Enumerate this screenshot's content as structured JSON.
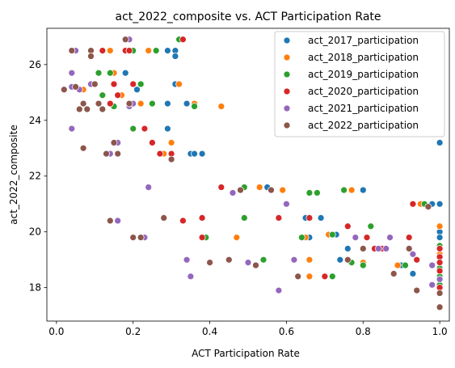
{
  "chart_data": {
    "type": "scatter",
    "title": "act_2022_composite vs. ACT Participation Rate",
    "xlabel": "ACT Participation Rate",
    "ylabel": "act_2022_composite",
    "xlim": [
      -0.025,
      1.025
    ],
    "ylim": [
      16.8,
      27.3
    ],
    "xticks": [
      "0.0",
      "0.2",
      "0.4",
      "0.6",
      "0.8",
      "1.0"
    ],
    "yticks": [
      "18",
      "20",
      "22",
      "24",
      "26"
    ],
    "grid": false,
    "legend_position": "top-right",
    "series": [
      {
        "name": "act_2017_participation",
        "color": "#1f77b4",
        "points": [
          [
            0.29,
            26.5
          ],
          [
            0.31,
            26.5
          ],
          [
            0.31,
            26.3
          ],
          [
            0.31,
            25.3
          ],
          [
            0.18,
            25.7
          ],
          [
            0.21,
            25.1
          ],
          [
            0.29,
            24.6
          ],
          [
            0.34,
            24.6
          ],
          [
            0.29,
            23.7
          ],
          [
            0.35,
            22.8
          ],
          [
            0.36,
            22.8
          ],
          [
            0.38,
            22.8
          ],
          [
            0.55,
            21.6
          ],
          [
            0.65,
            20.5
          ],
          [
            0.66,
            19.8
          ],
          [
            0.69,
            20.5
          ],
          [
            0.73,
            19.9
          ],
          [
            0.74,
            19.0
          ],
          [
            0.76,
            19.4
          ],
          [
            0.8,
            21.5
          ],
          [
            0.84,
            19.4
          ],
          [
            0.9,
            18.8
          ],
          [
            0.93,
            18.5
          ],
          [
            0.98,
            21.0
          ],
          [
            1.0,
            23.2
          ],
          [
            1.0,
            21.0
          ],
          [
            1.0,
            20.0
          ],
          [
            1.0,
            19.8
          ],
          [
            1.0,
            19.4
          ],
          [
            1.0,
            18.9
          ],
          [
            1.0,
            18.6
          ],
          [
            1.0,
            18.3
          ]
        ]
      },
      {
        "name": "act_2018_participation",
        "color": "#ff7f0e",
        "points": [
          [
            0.06,
            25.1
          ],
          [
            0.07,
            25.1
          ],
          [
            0.09,
            26.5
          ],
          [
            0.14,
            26.5
          ],
          [
            0.15,
            25.7
          ],
          [
            0.17,
            24.9
          ],
          [
            0.19,
            26.5
          ],
          [
            0.22,
            24.6
          ],
          [
            0.24,
            26.5
          ],
          [
            0.26,
            26.5
          ],
          [
            0.28,
            22.8
          ],
          [
            0.3,
            23.2
          ],
          [
            0.32,
            25.3
          ],
          [
            0.36,
            24.6
          ],
          [
            0.43,
            24.5
          ],
          [
            0.47,
            19.8
          ],
          [
            0.53,
            21.6
          ],
          [
            0.59,
            21.5
          ],
          [
            0.65,
            19.8
          ],
          [
            0.66,
            19.0
          ],
          [
            0.66,
            18.4
          ],
          [
            0.71,
            19.9
          ],
          [
            0.77,
            21.5
          ],
          [
            0.8,
            18.9
          ],
          [
            0.86,
            19.4
          ],
          [
            0.89,
            18.8
          ],
          [
            0.95,
            21.0
          ],
          [
            1.0,
            20.2
          ],
          [
            1.0,
            19.5
          ],
          [
            1.0,
            19.2
          ],
          [
            1.0,
            18.9
          ],
          [
            1.0,
            18.6
          ]
        ]
      },
      {
        "name": "act_2019_participation",
        "color": "#2ca02c",
        "points": [
          [
            0.11,
            25.7
          ],
          [
            0.12,
            24.9
          ],
          [
            0.14,
            25.7
          ],
          [
            0.15,
            24.5
          ],
          [
            0.2,
            23.7
          ],
          [
            0.2,
            26.5
          ],
          [
            0.22,
            25.3
          ],
          [
            0.25,
            24.6
          ],
          [
            0.26,
            26.5
          ],
          [
            0.32,
            26.9
          ],
          [
            0.36,
            24.5
          ],
          [
            0.39,
            19.8
          ],
          [
            0.49,
            21.6
          ],
          [
            0.49,
            20.5
          ],
          [
            0.54,
            19.0
          ],
          [
            0.64,
            19.8
          ],
          [
            0.66,
            21.4
          ],
          [
            0.68,
            21.4
          ],
          [
            0.72,
            19.9
          ],
          [
            0.72,
            18.4
          ],
          [
            0.75,
            21.5
          ],
          [
            0.77,
            18.9
          ],
          [
            0.8,
            18.8
          ],
          [
            0.82,
            20.2
          ],
          [
            0.86,
            19.4
          ],
          [
            0.91,
            18.8
          ],
          [
            0.96,
            21.0
          ],
          [
            1.0,
            19.5
          ],
          [
            1.0,
            19.1
          ],
          [
            1.0,
            18.7
          ],
          [
            1.0,
            18.4
          ],
          [
            1.0,
            18.1
          ]
        ]
      },
      {
        "name": "act_2020_participation",
        "color": "#d62728",
        "points": [
          [
            0.12,
            26.5
          ],
          [
            0.14,
            24.6
          ],
          [
            0.15,
            25.3
          ],
          [
            0.16,
            24.9
          ],
          [
            0.18,
            26.5
          ],
          [
            0.19,
            26.5
          ],
          [
            0.2,
            25.3
          ],
          [
            0.23,
            23.7
          ],
          [
            0.25,
            23.2
          ],
          [
            0.27,
            22.8
          ],
          [
            0.3,
            22.8
          ],
          [
            0.33,
            26.9
          ],
          [
            0.33,
            20.4
          ],
          [
            0.38,
            20.5
          ],
          [
            0.38,
            19.8
          ],
          [
            0.43,
            21.6
          ],
          [
            0.58,
            20.5
          ],
          [
            0.66,
            20.5
          ],
          [
            0.7,
            18.4
          ],
          [
            0.76,
            20.2
          ],
          [
            0.81,
            19.8
          ],
          [
            0.83,
            19.4
          ],
          [
            0.85,
            19.4
          ],
          [
            0.92,
            19.8
          ],
          [
            0.93,
            21.0
          ],
          [
            0.94,
            19.0
          ],
          [
            1.0,
            19.4
          ],
          [
            1.0,
            19.1
          ],
          [
            1.0,
            18.9
          ],
          [
            1.0,
            18.6
          ],
          [
            1.0,
            18.3
          ],
          [
            1.0,
            18.0
          ]
        ]
      },
      {
        "name": "act_2021_participation",
        "color": "#9467bd",
        "points": [
          [
            0.05,
            26.5
          ],
          [
            0.04,
            25.7
          ],
          [
            0.04,
            25.2
          ],
          [
            0.04,
            23.7
          ],
          [
            0.06,
            25.1
          ],
          [
            0.07,
            24.6
          ],
          [
            0.08,
            24.4
          ],
          [
            0.09,
            25.3
          ],
          [
            0.14,
            22.8
          ],
          [
            0.16,
            23.2
          ],
          [
            0.16,
            20.4
          ],
          [
            0.18,
            26.9
          ],
          [
            0.19,
            26.9
          ],
          [
            0.19,
            24.5
          ],
          [
            0.2,
            24.6
          ],
          [
            0.23,
            19.8
          ],
          [
            0.24,
            21.6
          ],
          [
            0.34,
            19.0
          ],
          [
            0.35,
            18.4
          ],
          [
            0.46,
            21.4
          ],
          [
            0.5,
            18.9
          ],
          [
            0.58,
            17.9
          ],
          [
            0.6,
            21.0
          ],
          [
            0.62,
            19.0
          ],
          [
            0.78,
            19.8
          ],
          [
            0.84,
            19.4
          ],
          [
            0.86,
            19.4
          ],
          [
            0.87,
            19.8
          ],
          [
            0.93,
            19.2
          ],
          [
            0.98,
            18.8
          ],
          [
            0.98,
            18.1
          ],
          [
            1.0,
            18.3
          ]
        ]
      },
      {
        "name": "act_2022_participation",
        "color": "#8c564b",
        "points": [
          [
            0.02,
            25.1
          ],
          [
            0.04,
            26.5
          ],
          [
            0.05,
            25.2
          ],
          [
            0.06,
            24.4
          ],
          [
            0.07,
            24.6
          ],
          [
            0.07,
            23.0
          ],
          [
            0.08,
            24.4
          ],
          [
            0.09,
            26.5
          ],
          [
            0.09,
            26.3
          ],
          [
            0.1,
            25.3
          ],
          [
            0.11,
            24.6
          ],
          [
            0.12,
            24.4
          ],
          [
            0.13,
            22.8
          ],
          [
            0.14,
            20.4
          ],
          [
            0.15,
            23.2
          ],
          [
            0.16,
            22.8
          ],
          [
            0.18,
            26.9
          ],
          [
            0.19,
            24.6
          ],
          [
            0.2,
            19.8
          ],
          [
            0.22,
            19.8
          ],
          [
            0.28,
            20.5
          ],
          [
            0.3,
            22.6
          ],
          [
            0.4,
            18.9
          ],
          [
            0.45,
            19.0
          ],
          [
            0.48,
            21.5
          ],
          [
            0.52,
            18.8
          ],
          [
            0.56,
            21.5
          ],
          [
            0.63,
            18.4
          ],
          [
            0.76,
            19.0
          ],
          [
            0.8,
            19.4
          ],
          [
            0.88,
            18.5
          ],
          [
            0.92,
            19.4
          ],
          [
            0.94,
            17.9
          ],
          [
            0.97,
            20.9
          ],
          [
            1.0,
            17.3
          ],
          [
            1.0,
            17.8
          ]
        ]
      }
    ]
  }
}
